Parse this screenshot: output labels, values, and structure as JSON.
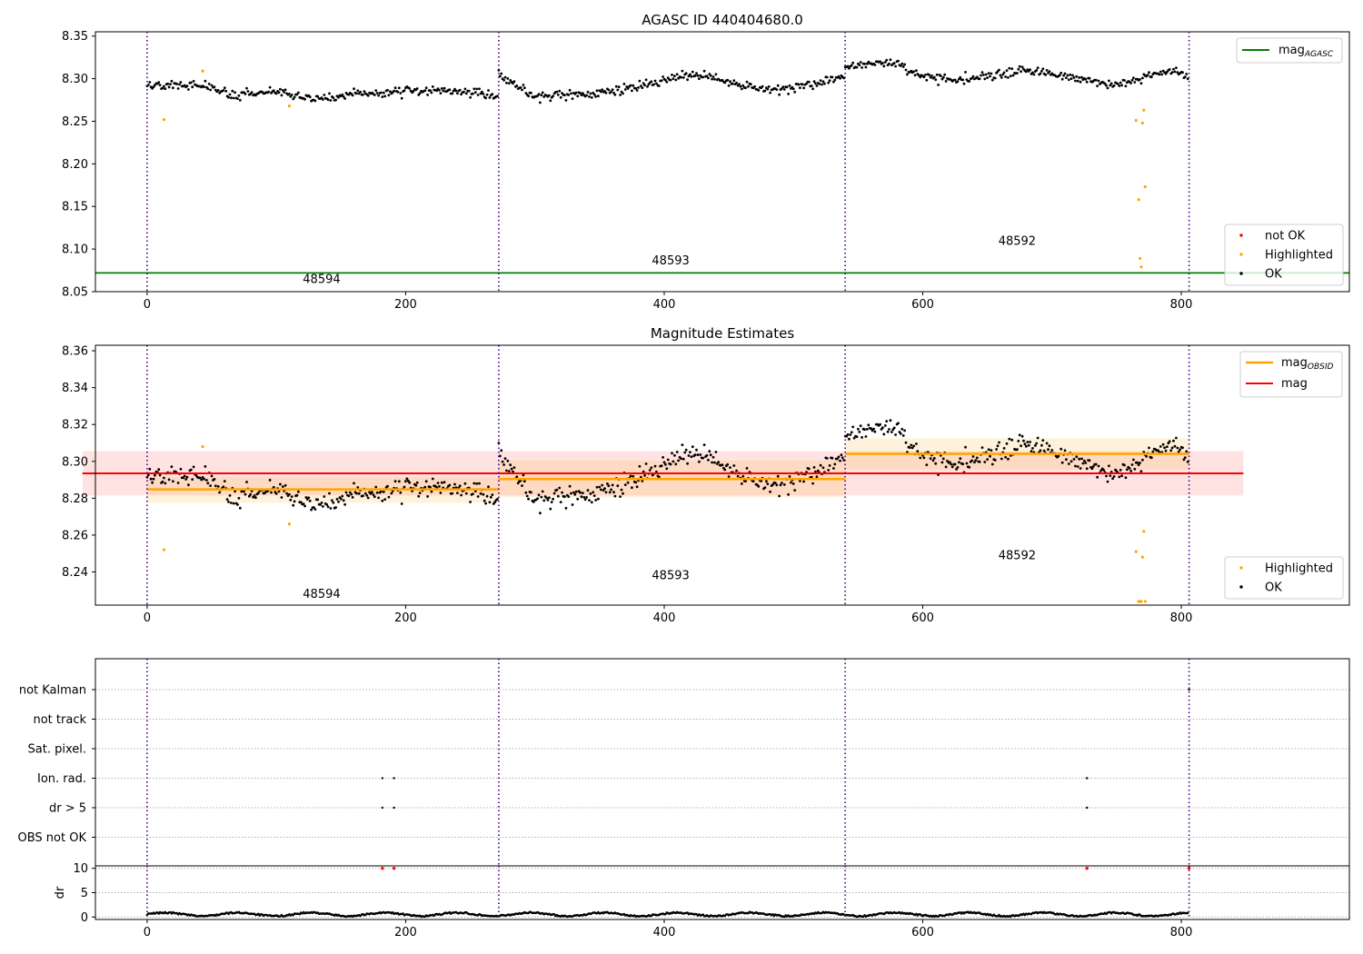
{
  "figure": {
    "colors": {
      "ok": "#000000",
      "highlighted": "#ffa500",
      "not_ok": "#ff0000",
      "mag_agasc": "#008000",
      "mag_obsid": "#ffa500",
      "mag": "#ff0000",
      "obs_boundary": "#4b0082"
    }
  },
  "chart_data": [
    {
      "type": "scatter",
      "title": "AGASC ID 440404680.0",
      "xlim": [
        -40,
        930
      ],
      "ylim": [
        8.05,
        8.355
      ],
      "xticks": [
        0,
        200,
        400,
        600,
        800
      ],
      "yticks": [
        8.05,
        8.1,
        8.15,
        8.2,
        8.25,
        8.3,
        8.35
      ],
      "yticklabels": [
        "8.05",
        "8.10",
        "8.15",
        "8.20",
        "8.25",
        "8.30",
        "8.35"
      ],
      "obs_boundaries": [
        0,
        272,
        540,
        806
      ],
      "obs_labels": [
        {
          "text": "48594",
          "x": 135,
          "y": 8.06
        },
        {
          "text": "48593",
          "x": 405,
          "y": 8.082
        },
        {
          "text": "48592",
          "x": 673,
          "y": 8.105
        }
      ],
      "mag_agasc": 8.072,
      "ok_segments": [
        {
          "x0": 0,
          "x1": 272,
          "knots": [
            [
              0,
              8.292
            ],
            [
              40,
              8.294
            ],
            [
              70,
              8.279
            ],
            [
              100,
              8.285
            ],
            [
              130,
              8.276
            ],
            [
              170,
              8.282
            ],
            [
              210,
              8.286
            ],
            [
              250,
              8.285
            ],
            [
              271,
              8.281
            ]
          ],
          "noise": 0.0055
        },
        {
          "x0": 272,
          "x1": 540,
          "knots": [
            [
              272,
              8.303
            ],
            [
              300,
              8.279
            ],
            [
              340,
              8.281
            ],
            [
              380,
              8.29
            ],
            [
              420,
              8.305
            ],
            [
              450,
              8.297
            ],
            [
              480,
              8.287
            ],
            [
              510,
              8.29
            ],
            [
              539,
              8.304
            ]
          ],
          "noise": 0.0055
        },
        {
          "x0": 540,
          "x1": 806,
          "knots": [
            [
              540,
              8.315
            ],
            [
              580,
              8.318
            ],
            [
              600,
              8.301
            ],
            [
              640,
              8.3
            ],
            [
              680,
              8.31
            ],
            [
              720,
              8.3
            ],
            [
              750,
              8.293
            ],
            [
              770,
              8.3
            ],
            [
              790,
              8.31
            ],
            [
              805,
              8.303
            ]
          ],
          "noise": 0.0055
        }
      ],
      "highlighted_points": [
        [
          13,
          8.252
        ],
        [
          43,
          8.309
        ],
        [
          110,
          8.268
        ],
        [
          765,
          8.251
        ],
        [
          767,
          8.158
        ],
        [
          768,
          8.089
        ],
        [
          769,
          8.079
        ],
        [
          770,
          8.248
        ],
        [
          771,
          8.263
        ],
        [
          772,
          8.173
        ]
      ],
      "legend": {
        "position": "top-right",
        "entries": [
          {
            "label": "mag",
            "subscript": "AGASC"
          }
        ]
      },
      "legend2": {
        "position": "lower-right",
        "entries": [
          {
            "label": "not OK"
          },
          {
            "label": "Highlighted"
          },
          {
            "label": "OK"
          }
        ]
      }
    },
    {
      "type": "scatter",
      "title": "Magnitude Estimates",
      "xlim": [
        -40,
        930
      ],
      "ylim": [
        8.222,
        8.363
      ],
      "xticks": [
        0,
        200,
        400,
        600,
        800
      ],
      "yticks": [
        8.24,
        8.26,
        8.28,
        8.3,
        8.32,
        8.34,
        8.36
      ],
      "yticklabels": [
        "8.24",
        "8.26",
        "8.28",
        "8.30",
        "8.32",
        "8.34",
        "8.36"
      ],
      "obs_boundaries": [
        0,
        272,
        540,
        806
      ],
      "obs_labels": [
        {
          "text": "48594",
          "x": 135,
          "y": 8.226
        },
        {
          "text": "48593",
          "x": 405,
          "y": 8.236
        },
        {
          "text": "48592",
          "x": 673,
          "y": 8.247
        }
      ],
      "mag": {
        "value": 8.2935,
        "band": [
          8.2815,
          8.3055
        ],
        "x0": 0,
        "x1": 848
      },
      "mag_obsid": [
        {
          "x0": 0,
          "x1": 272,
          "value": 8.2848,
          "band": [
            8.2775,
            8.2915
          ]
        },
        {
          "x0": 272,
          "x1": 540,
          "value": 8.2904,
          "band": [
            8.2805,
            8.3005
          ]
        },
        {
          "x0": 540,
          "x1": 806,
          "value": 8.3041,
          "band": [
            8.2955,
            8.3125
          ]
        }
      ],
      "highlighted_points": [
        [
          13,
          8.252
        ],
        [
          43,
          8.308
        ],
        [
          110,
          8.266
        ],
        [
          765,
          8.251
        ],
        [
          767,
          8.224
        ],
        [
          768,
          8.224
        ],
        [
          769,
          8.224
        ],
        [
          770,
          8.248
        ],
        [
          771,
          8.262
        ],
        [
          772,
          8.224
        ]
      ],
      "legend": {
        "position": "top-right",
        "entries": [
          {
            "label": "mag",
            "subscript": "OBSID"
          },
          {
            "label": "mag"
          }
        ]
      },
      "legend2": {
        "position": "lower-right",
        "entries": [
          {
            "label": "Highlighted"
          },
          {
            "label": "OK"
          }
        ]
      }
    },
    {
      "type": "scatter",
      "title": "",
      "xlim": [
        -40,
        930
      ],
      "xticks": [
        0,
        200,
        400,
        600,
        800
      ],
      "flag_rows": [
        "not Kalman",
        "not track",
        "Sat. pixel.",
        "Ion. rad.",
        "dr > 5",
        "OBS not OK"
      ],
      "flag_points": [
        {
          "row": "Ion. rad.",
          "x": [
            182,
            191,
            727
          ]
        },
        {
          "row": "dr > 5",
          "x": [
            182,
            191,
            727
          ]
        },
        {
          "row": "not Kalman",
          "x": [
            806
          ]
        }
      ],
      "obs_boundaries": [
        0,
        272,
        540,
        806
      ]
    },
    {
      "type": "line",
      "ylabel": "dr",
      "xlim": [
        -40,
        930
      ],
      "ylim": [
        -0.5,
        10.5
      ],
      "yticks": [
        0,
        5,
        10
      ],
      "yticklabels": [
        "0",
        "5",
        "10"
      ],
      "dr_clipped": [
        [
          182,
          10
        ],
        [
          191,
          10
        ],
        [
          727,
          10
        ],
        [
          806,
          10
        ]
      ],
      "obs_boundaries": [
        0,
        272,
        540,
        806
      ],
      "xticks": [
        0,
        200,
        400,
        600,
        800
      ],
      "xticklabels": [
        "0",
        "200",
        "400",
        "600",
        "800"
      ]
    }
  ]
}
